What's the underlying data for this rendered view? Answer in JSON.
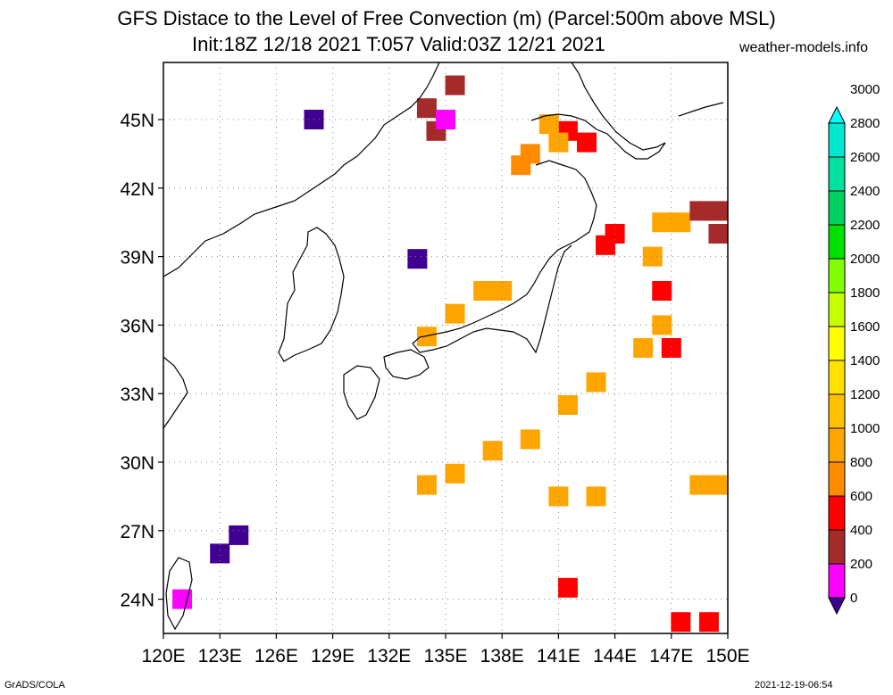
{
  "title": {
    "line1": "GFS Distace to the Level of Free Convection (m) (Parcel:500m above MSL)",
    "line2": "Init:18Z 12/18 2021 T:057 Valid:03Z 12/21 2021",
    "site": "weather-models.info"
  },
  "footer": {
    "left": "GrADS/COLA",
    "right": "2021-12-19-06:54"
  },
  "map": {
    "lon_range": [
      120,
      150
    ],
    "lat_range": [
      22.5,
      47.5
    ],
    "lat_ticks": [
      "45N",
      "42N",
      "39N",
      "36N",
      "33N",
      "30N",
      "27N",
      "24N"
    ],
    "lat_values": [
      45,
      42,
      39,
      36,
      33,
      30,
      27,
      24
    ],
    "lon_ticks": [
      "120E",
      "123E",
      "126E",
      "129E",
      "132E",
      "135E",
      "138E",
      "141E",
      "144E",
      "147E",
      "150E"
    ],
    "lon_values": [
      120,
      123,
      126,
      129,
      132,
      135,
      138,
      141,
      144,
      147,
      150
    ],
    "grid": "dotted"
  },
  "colorbar": {
    "labels": [
      "0",
      "200",
      "400",
      "600",
      "800",
      "1000",
      "1200",
      "1400",
      "1600",
      "1800",
      "2000",
      "2200",
      "2400",
      "2600",
      "2800",
      "3000"
    ],
    "colors": [
      "#400090",
      "#ff00ff",
      "#a52a2a",
      "#ff0000",
      "#ff8c00",
      "#ffa500",
      "#ffc000",
      "#ffe000",
      "#ffff00",
      "#c8ff00",
      "#80ff00",
      "#00e000",
      "#00d060",
      "#00e0a0",
      "#00e8d0",
      "#00ffff"
    ]
  },
  "field_cells": [
    {
      "lon": 141.5,
      "lat": 44.5,
      "v": 3
    },
    {
      "lon": 142.5,
      "lat": 44.0,
      "v": 3
    },
    {
      "lon": 139.5,
      "lat": 43.5,
      "v": 4
    },
    {
      "lon": 139.0,
      "lat": 43.0,
      "v": 4
    },
    {
      "lon": 140.5,
      "lat": 44.8,
      "v": 5
    },
    {
      "lon": 141.0,
      "lat": 44.0,
      "v": 5
    },
    {
      "lon": 134.0,
      "lat": 45.5,
      "v": 2
    },
    {
      "lon": 135.5,
      "lat": 46.5,
      "v": 2
    },
    {
      "lon": 134.5,
      "lat": 44.5,
      "v": 2
    },
    {
      "lon": 135.0,
      "lat": 45.0,
      "v": 1
    },
    {
      "lon": 143.5,
      "lat": 39.5,
      "v": 3
    },
    {
      "lon": 144.0,
      "lat": 40.0,
      "v": 3
    },
    {
      "lon": 146.5,
      "lat": 40.5,
      "v": 5
    },
    {
      "lon": 147.5,
      "lat": 40.5,
      "v": 5
    },
    {
      "lon": 148.5,
      "lat": 41.0,
      "v": 2
    },
    {
      "lon": 149.5,
      "lat": 41.0,
      "v": 2
    },
    {
      "lon": 149.5,
      "lat": 40.0,
      "v": 2
    },
    {
      "lon": 146.0,
      "lat": 39.0,
      "v": 5
    },
    {
      "lon": 146.5,
      "lat": 37.5,
      "v": 3
    },
    {
      "lon": 147.0,
      "lat": 35.0,
      "v": 3
    },
    {
      "lon": 146.5,
      "lat": 36.0,
      "v": 5
    },
    {
      "lon": 145.5,
      "lat": 35.0,
      "v": 5
    },
    {
      "lon": 137.0,
      "lat": 37.5,
      "v": 5
    },
    {
      "lon": 138.0,
      "lat": 37.5,
      "v": 5
    },
    {
      "lon": 135.5,
      "lat": 36.5,
      "v": 5
    },
    {
      "lon": 134.0,
      "lat": 35.5,
      "v": 5
    },
    {
      "lon": 143.0,
      "lat": 33.5,
      "v": 5
    },
    {
      "lon": 141.5,
      "lat": 32.5,
      "v": 5
    },
    {
      "lon": 139.5,
      "lat": 31.0,
      "v": 5
    },
    {
      "lon": 137.5,
      "lat": 30.5,
      "v": 5
    },
    {
      "lon": 134.0,
      "lat": 29.0,
      "v": 5
    },
    {
      "lon": 135.5,
      "lat": 29.5,
      "v": 5
    },
    {
      "lon": 141.0,
      "lat": 28.5,
      "v": 5
    },
    {
      "lon": 143.0,
      "lat": 28.5,
      "v": 5
    },
    {
      "lon": 148.5,
      "lat": 29.0,
      "v": 5
    },
    {
      "lon": 149.5,
      "lat": 29.0,
      "v": 5
    },
    {
      "lon": 147.5,
      "lat": 23.0,
      "v": 3
    },
    {
      "lon": 149.0,
      "lat": 23.0,
      "v": 3
    },
    {
      "lon": 141.5,
      "lat": 24.5,
      "v": 3
    },
    {
      "lon": 123.0,
      "lat": 26.0,
      "v": 0
    },
    {
      "lon": 124.0,
      "lat": 26.8,
      "v": 0
    },
    {
      "lon": 121.0,
      "lat": 24.0,
      "v": 1
    },
    {
      "lon": 128.0,
      "lat": 45.0,
      "v": 0
    },
    {
      "lon": 133.5,
      "lat": 38.9,
      "v": 0
    }
  ]
}
